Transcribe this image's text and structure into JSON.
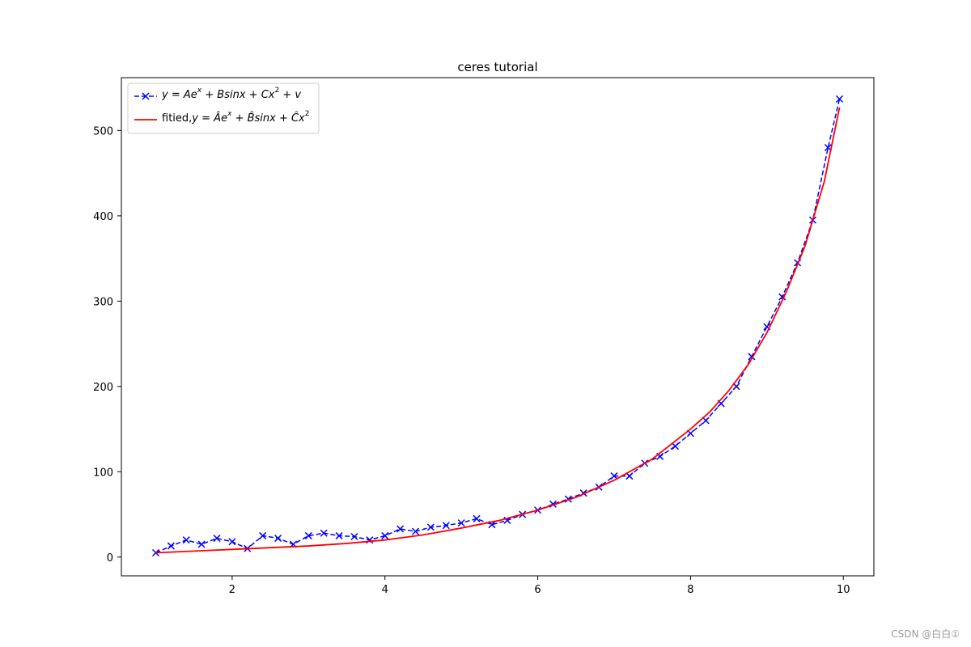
{
  "chart_data": {
    "type": "line",
    "title": "ceres tutorial",
    "xlabel": "",
    "ylabel": "",
    "xlim": [
      0.55,
      10.4
    ],
    "ylim": [
      -22,
      562
    ],
    "xticks": [
      2,
      4,
      6,
      8,
      10
    ],
    "xtick_labels": [
      "2",
      "4",
      "6",
      "8",
      "10"
    ],
    "yticks": [
      0,
      100,
      200,
      300,
      400,
      500
    ],
    "ytick_labels": [
      "0",
      "100",
      "200",
      "300",
      "400",
      "500"
    ],
    "grid": false,
    "legend_placement": "upper-left",
    "series": [
      {
        "name": "y = Ae^x + Bsinx + Cx^2 + v",
        "style": "dashed line with x markers",
        "color": "#0000ff",
        "x": [
          1.0,
          1.2,
          1.4,
          1.6,
          1.8,
          2.0,
          2.2,
          2.4,
          2.6,
          2.8,
          3.0,
          3.2,
          3.4,
          3.6,
          3.8,
          4.0,
          4.2,
          4.4,
          4.6,
          4.8,
          5.0,
          5.2,
          5.4,
          5.6,
          5.8,
          6.0,
          6.2,
          6.4,
          6.6,
          6.8,
          7.0,
          7.2,
          7.4,
          7.6,
          7.8,
          8.0,
          8.2,
          8.4,
          8.6,
          8.8,
          9.0,
          9.2,
          9.4,
          9.6,
          9.8,
          9.95
        ],
        "y": [
          5,
          13,
          20,
          15,
          22,
          18,
          10,
          25,
          22,
          15,
          25,
          28,
          25,
          24,
          20,
          25,
          33,
          30,
          35,
          37,
          40,
          45,
          38,
          43,
          50,
          55,
          62,
          68,
          75,
          82,
          95,
          95,
          110,
          118,
          130,
          145,
          160,
          180,
          200,
          235,
          270,
          305,
          345,
          395,
          480,
          537
        ]
      },
      {
        "name": "fitied,y = Âe^x + B̂sinx + Ĉx^2",
        "style": "solid line",
        "color": "#ff0000",
        "x": [
          1.0,
          1.5,
          2.0,
          2.5,
          3.0,
          3.5,
          4.0,
          4.5,
          5.0,
          5.5,
          6.0,
          6.5,
          7.0,
          7.5,
          8.0,
          8.25,
          8.5,
          8.75,
          9.0,
          9.25,
          9.5,
          9.75,
          9.95
        ],
        "y": [
          5,
          7,
          9,
          11,
          13,
          16,
          20,
          26,
          34,
          43,
          55,
          70,
          90,
          115,
          150,
          170,
          195,
          225,
          263,
          310,
          365,
          440,
          527
        ]
      }
    ],
    "legend": [
      {
        "label_html": "<i>y</i> = <i>Ae</i><sup><i>x</i></sup> + <i>Bsinx</i> + <i>Cx</i><sup>2</sup> + <i>v</i>"
      },
      {
        "label_html": "fitied,<i>y</i> = <i>Â</i><i>e</i><sup><i>x</i></sup> + <i>B̂sinx</i> + <i>Ĉx</i><sup>2</sup>"
      }
    ]
  },
  "watermark": "CSDN @白白①"
}
